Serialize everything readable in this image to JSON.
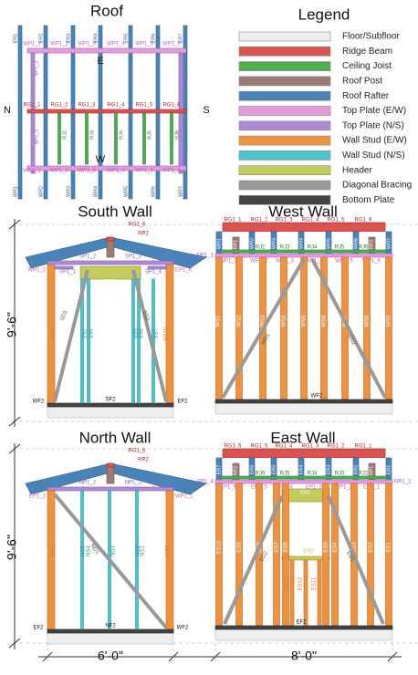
{
  "titles": {
    "roof": "Roof",
    "legend": "Legend",
    "south": "South Wall",
    "west": "West Wall",
    "north": "North Wall",
    "east": "East Wall"
  },
  "compass": {
    "n": "N",
    "s": "S",
    "e": "E",
    "w": "W"
  },
  "legend": [
    {
      "label": "Floor/Subfloor",
      "color": "#eeeeee"
    },
    {
      "label": "Ridge Beam",
      "color": "#d9534f"
    },
    {
      "label": "Ceiling Joist",
      "color": "#4caf50"
    },
    {
      "label": "Roof Post",
      "color": "#9b7b72"
    },
    {
      "label": "Roof Rafter",
      "color": "#4a83b8"
    },
    {
      "label": "Top Plate (E/W)",
      "color": "#e59be0"
    },
    {
      "label": "Top Plate (N/S)",
      "color": "#b08ad9"
    },
    {
      "label": "Wall Stud (E/W)",
      "color": "#f0923d"
    },
    {
      "label": "Wall Stud (N/S)",
      "color": "#4cc4d0"
    },
    {
      "label": "Header",
      "color": "#c4cc5c"
    },
    {
      "label": "Diagonal Bracing",
      "color": "#999999"
    },
    {
      "label": "Bottom Plate",
      "color": "#444444"
    }
  ],
  "roof": {
    "top_er": [
      "ER1",
      "ER2",
      "ER3",
      "ER4",
      "ER5",
      "ER6",
      "ER7"
    ],
    "bottom_wr": [
      "WR1",
      "WR2",
      "WR3",
      "WR4",
      "WR5",
      "WR6",
      "WR7"
    ],
    "top_plates": [
      "WP1_1",
      "WP1_2",
      "WP1_3",
      "WP1_4",
      "WP1_5",
      "WP1_6"
    ],
    "ridge": [
      "RG1_1",
      "RG1_2",
      "RG1_3",
      "RG1_4",
      "RG1_5",
      "RG1_6"
    ],
    "bottom_plates": [
      "WP1_1",
      "WP1_2",
      "WP1_3",
      "WP1_4",
      "WP1_5",
      "WP1_6"
    ],
    "joists": [
      "RJ2",
      "RJ3",
      "RJ4",
      "RJ5",
      "RJ6"
    ],
    "side_left": [
      "NP1_2",
      "NP1_1"
    ],
    "side_right": [
      "SP1_3",
      "SP1_1"
    ]
  },
  "south": {
    "ridge": "RG1_6",
    "post": "RP2",
    "left_rafter": "WR7",
    "right_rafter": "ER7",
    "plates": [
      "SP1_2",
      "SP1_3"
    ],
    "lower_plates": [
      "SP1_1",
      "SP1_4"
    ],
    "corner_left": "WP1_1",
    "corner_right": "EP1_6",
    "header": "SH1",
    "studs": [
      "WS9",
      "SS2",
      "SS4",
      "SS5",
      "SS6",
      "SS7",
      "ES10"
    ],
    "braces": [
      "SD1",
      "SD2"
    ],
    "bottom": [
      "WF2",
      "SF2",
      "EF2"
    ]
  },
  "west": {
    "ridge": [
      "RG1_1",
      "RG1_2",
      "RG1_3",
      "RG1_4",
      "RG1_5",
      "RG1_6"
    ],
    "rafters": [
      "WR1",
      "WR2",
      "WR3",
      "WR4",
      "WR5",
      "WR6",
      "WR7"
    ],
    "posts": [
      "RP1",
      "RP2"
    ],
    "joists": [
      "RJ2",
      "RJ3",
      "RJ4",
      "RJ5",
      "RJ6"
    ],
    "corner": "NP1_1",
    "plates": [
      "WP1_1",
      "WP1_2",
      "WP1_3",
      "WP1_4",
      "WP1_5",
      "WP1_6"
    ],
    "studs": [
      "WS1",
      "WS2",
      "WS3",
      "WS4",
      "WS5",
      "WS6",
      "WS7",
      "WS8",
      "WS9"
    ],
    "braces": [
      "WD1",
      "WD2"
    ],
    "bottom": "WF2"
  },
  "north": {
    "ridge": "RG1_6",
    "post": "RP2",
    "left_rafter": "ER1",
    "right_rafter": "WR1",
    "plates": [
      "NP1_2",
      "NP1_2"
    ],
    "corner_left": "EP1_1",
    "corner_right": "WP1_1",
    "studs": [
      "ES1",
      "NS5",
      "NS4",
      "NS3",
      "NS2",
      "NS1",
      "WS1"
    ],
    "brace": "ND1",
    "bottom": [
      "EF2",
      "NF2",
      "WF2"
    ]
  },
  "east": {
    "ridge": [
      "RG1_6",
      "RG1_5",
      "RG1_4",
      "RG1_3",
      "RG1_2",
      "RG1_1"
    ],
    "rafters": [
      "ER7",
      "ER6",
      "ER5",
      "ER4",
      "ER3",
      "ER2",
      "ER1"
    ],
    "posts": [
      "RP2",
      "RP1"
    ],
    "joists": [
      "RJ6",
      "RJ5",
      "RJ4",
      "RJ3",
      "RJ2"
    ],
    "corner_left": "SP1_4",
    "corner_right": "NP1_2",
    "plates": [
      "EP1_6",
      "EP1_5",
      "EP1_4",
      "EP1_3",
      "EP1_2",
      "EP1_1"
    ],
    "headers": [
      "EH1",
      "EH2"
    ],
    "studs": [
      "ES10",
      "ES9",
      "ES8",
      "ES7",
      "ES6",
      "ES5",
      "ES4",
      "ES3",
      "ES2",
      "ES1"
    ],
    "short_studs": [
      "ES13",
      "ES12",
      "ES11"
    ],
    "braces": [
      "ED2",
      "ED1"
    ],
    "bottom": "EF2"
  },
  "dims": {
    "height_top": "9'-6\"",
    "height_bottom": "9'-6\"",
    "width_left": "6'-0\"",
    "width_right": "8'-0\""
  }
}
